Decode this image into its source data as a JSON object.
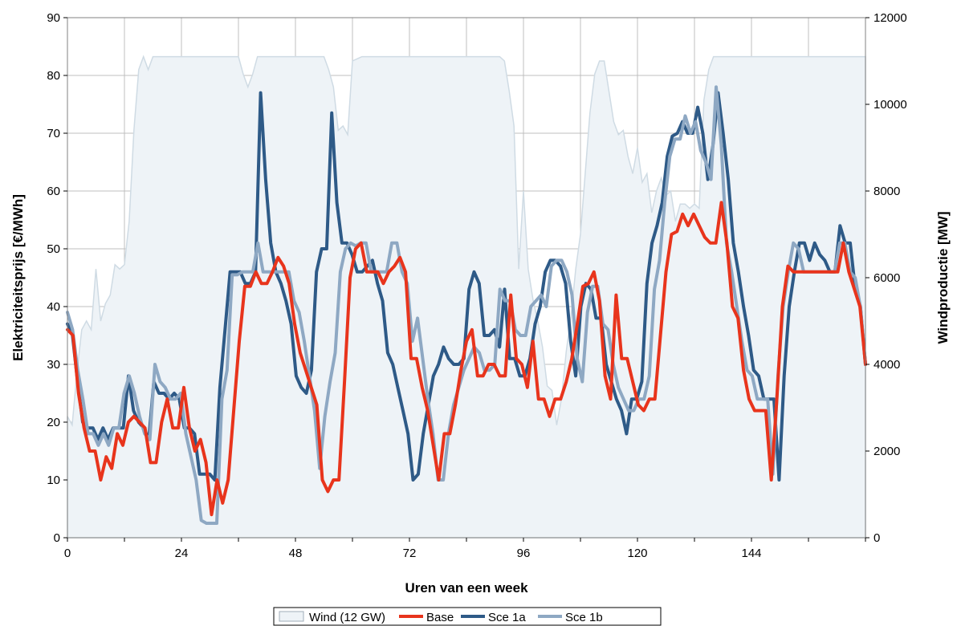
{
  "chart_data": {
    "type": "line",
    "xlabel": "Uren van een week",
    "ylabel": "Elektriciteitsprijs [€/MWh]",
    "y2label": "Windproductie [MW]",
    "xlim": [
      0,
      168
    ],
    "ylim": [
      0,
      90
    ],
    "y2lim": [
      0,
      12000
    ],
    "x_ticks": [
      0,
      24,
      48,
      72,
      96,
      120,
      144
    ],
    "x_minor_step": 12,
    "y_ticks": [
      0,
      10,
      20,
      30,
      40,
      50,
      60,
      70,
      80,
      90
    ],
    "y2_ticks": [
      0,
      2000,
      4000,
      6000,
      8000,
      10000,
      12000
    ],
    "grid": true,
    "legend_position": "bottom",
    "colors": {
      "wind_fill": "#eef3f7",
      "wind_stroke": "#cfdbe4",
      "base": "#e8341c",
      "sce1a": "#2e5a87",
      "sce1b": "#8ea8c3"
    },
    "series": [
      {
        "name": "Wind (12 GW)",
        "axis": "right",
        "kind": "area",
        "x": [
          0,
          1,
          2,
          3,
          4,
          5,
          6,
          7,
          8,
          9,
          10,
          11,
          12,
          13,
          14,
          15,
          16,
          17,
          18,
          19,
          20,
          22,
          24,
          28,
          32,
          34,
          36,
          37,
          38,
          39,
          40,
          42,
          44,
          48,
          50,
          52,
          54,
          55,
          56,
          57,
          58,
          59,
          60,
          62,
          64,
          66,
          68,
          72,
          76,
          80,
          84,
          88,
          90,
          91,
          92,
          93,
          94,
          95,
          96,
          97,
          98,
          99,
          100,
          101,
          102,
          103,
          104,
          105,
          106,
          107,
          108,
          109,
          110,
          111,
          112,
          113,
          114,
          115,
          116,
          117,
          118,
          119,
          120,
          121,
          122,
          123,
          124,
          125,
          126,
          127,
          128,
          129,
          130,
          131,
          132,
          133,
          134,
          135,
          136,
          137,
          138,
          139,
          140,
          141,
          142,
          144,
          148,
          152,
          156,
          160,
          164,
          168
        ],
        "values": [
          2800,
          2600,
          3800,
          4800,
          5000,
          4800,
          6200,
          5000,
          5400,
          5600,
          6300,
          6200,
          6300,
          7300,
          9400,
          10800,
          11100,
          10800,
          11100,
          11100,
          11100,
          11100,
          11100,
          11100,
          11100,
          11100,
          11100,
          10700,
          10400,
          10700,
          11100,
          11100,
          11100,
          11100,
          11100,
          11100,
          11100,
          10800,
          10400,
          9400,
          9500,
          9300,
          11000,
          11100,
          11100,
          11100,
          11100,
          11100,
          11100,
          11100,
          11100,
          11100,
          11100,
          11100,
          11000,
          10300,
          9500,
          6200,
          8000,
          6200,
          5500,
          5000,
          4400,
          3500,
          3400,
          2600,
          3200,
          4300,
          5100,
          6200,
          7000,
          8400,
          9800,
          10700,
          11000,
          11000,
          10300,
          9600,
          9300,
          9400,
          8800,
          8400,
          9000,
          8200,
          8400,
          7500,
          8000,
          8300,
          7900,
          8000,
          7300,
          7700,
          7700,
          7600,
          7700,
          7600,
          10100,
          10800,
          11100,
          11100,
          11100,
          11100,
          11100,
          11100,
          11100,
          11100,
          11100,
          11100,
          11100,
          11100,
          11100,
          11100
        ]
      },
      {
        "name": "Base",
        "axis": "left",
        "values": [
          36,
          35,
          25,
          19,
          15,
          15,
          10,
          14,
          12,
          18,
          16,
          20,
          21,
          20,
          19,
          13,
          13,
          20,
          24,
          19,
          19,
          26,
          19,
          15,
          17,
          13,
          4,
          10,
          6,
          10,
          22,
          34,
          43.5,
          43.5,
          46,
          44,
          44,
          46,
          48.5,
          47,
          44,
          37,
          32,
          29,
          26,
          23,
          10,
          8,
          10,
          10,
          27,
          45,
          50,
          51,
          46,
          46,
          46,
          44,
          46,
          47,
          48.5,
          46,
          31,
          31,
          26,
          22,
          16,
          10,
          18,
          18,
          23,
          29,
          34,
          36,
          28,
          28,
          30,
          30,
          28,
          28,
          42,
          31,
          30,
          26,
          34,
          24,
          24,
          21,
          24,
          24,
          27,
          31,
          37,
          43.5,
          44,
          46,
          41,
          28,
          24,
          42,
          31,
          31,
          27,
          23,
          22,
          24,
          24,
          35,
          46,
          52.5,
          53,
          56,
          54,
          56,
          54,
          52,
          51,
          51,
          58,
          51,
          40,
          38,
          29,
          24,
          22,
          22,
          22,
          10,
          24,
          40,
          47,
          46,
          46,
          46,
          46,
          46,
          46,
          46,
          46,
          46,
          51,
          46,
          43,
          40,
          30
        ]
      },
      {
        "name": "Sce 1a",
        "axis": "left",
        "values": [
          37,
          35,
          27,
          20,
          19,
          19,
          17,
          19,
          17,
          19,
          19,
          19,
          28,
          22,
          20,
          19,
          17,
          27,
          25,
          25,
          24,
          25,
          24,
          19,
          19,
          18,
          11,
          11,
          11,
          10,
          26,
          36,
          46,
          46,
          46,
          44,
          44,
          46,
          77,
          62,
          51,
          46,
          44,
          41,
          37,
          28,
          26,
          25,
          29,
          46,
          50,
          50,
          73.5,
          58,
          51,
          51,
          49,
          46,
          46,
          47,
          48,
          44,
          41,
          32,
          30,
          26,
          22,
          18,
          10,
          11,
          18,
          23,
          28,
          30,
          33,
          31,
          30,
          30,
          31,
          43,
          46,
          44,
          35,
          35,
          36,
          33,
          43,
          31,
          31,
          28,
          28,
          31,
          37,
          40,
          46,
          48,
          48,
          47,
          44,
          34,
          28,
          40,
          44,
          43,
          38,
          38,
          30,
          27,
          24,
          22,
          18,
          24,
          24,
          27,
          44,
          51,
          54,
          58,
          66,
          69.5,
          70,
          72,
          70,
          70,
          74.5,
          70,
          62,
          68,
          77,
          70,
          62,
          51,
          46,
          40,
          35,
          29,
          28,
          24,
          24,
          24,
          10,
          28,
          40,
          46,
          51,
          51,
          48,
          51,
          49,
          48,
          46,
          46,
          54,
          51,
          51,
          43,
          40,
          30
        ]
      },
      {
        "name": "Sce 1b",
        "axis": "left",
        "values": [
          39,
          36,
          29,
          24,
          18,
          18,
          16,
          18,
          16,
          19,
          19,
          25,
          28,
          25,
          21,
          18,
          17,
          30,
          27,
          26,
          24,
          24,
          25,
          18,
          14,
          10,
          3,
          2.5,
          2.5,
          2.5,
          24,
          29,
          45.5,
          45.5,
          46,
          46,
          46,
          51,
          46,
          46,
          46,
          46,
          46,
          46,
          41,
          39,
          34,
          28,
          22,
          12,
          21,
          27,
          32,
          46,
          50,
          51,
          50.5,
          51,
          51,
          46,
          46,
          46,
          46,
          51,
          51,
          46,
          44,
          34,
          38,
          31,
          24,
          18,
          10,
          10,
          18,
          23,
          26,
          29,
          31,
          33,
          32,
          29,
          29,
          30,
          43,
          41,
          41,
          36,
          35,
          35,
          40,
          41,
          42,
          40,
          47,
          48,
          48,
          46,
          42,
          31,
          27,
          39,
          43.5,
          43.5,
          37,
          36,
          30,
          26,
          24,
          22,
          22,
          24,
          24,
          28,
          43,
          48,
          58,
          66,
          69,
          69,
          73,
          70,
          72,
          67,
          65,
          62,
          78,
          68,
          51,
          46,
          40,
          34,
          29,
          28,
          24,
          24,
          24,
          11,
          28,
          40,
          46,
          51,
          50,
          46,
          46,
          46,
          46,
          46,
          46,
          46,
          51,
          51,
          46,
          45,
          40,
          30
        ]
      }
    ]
  }
}
